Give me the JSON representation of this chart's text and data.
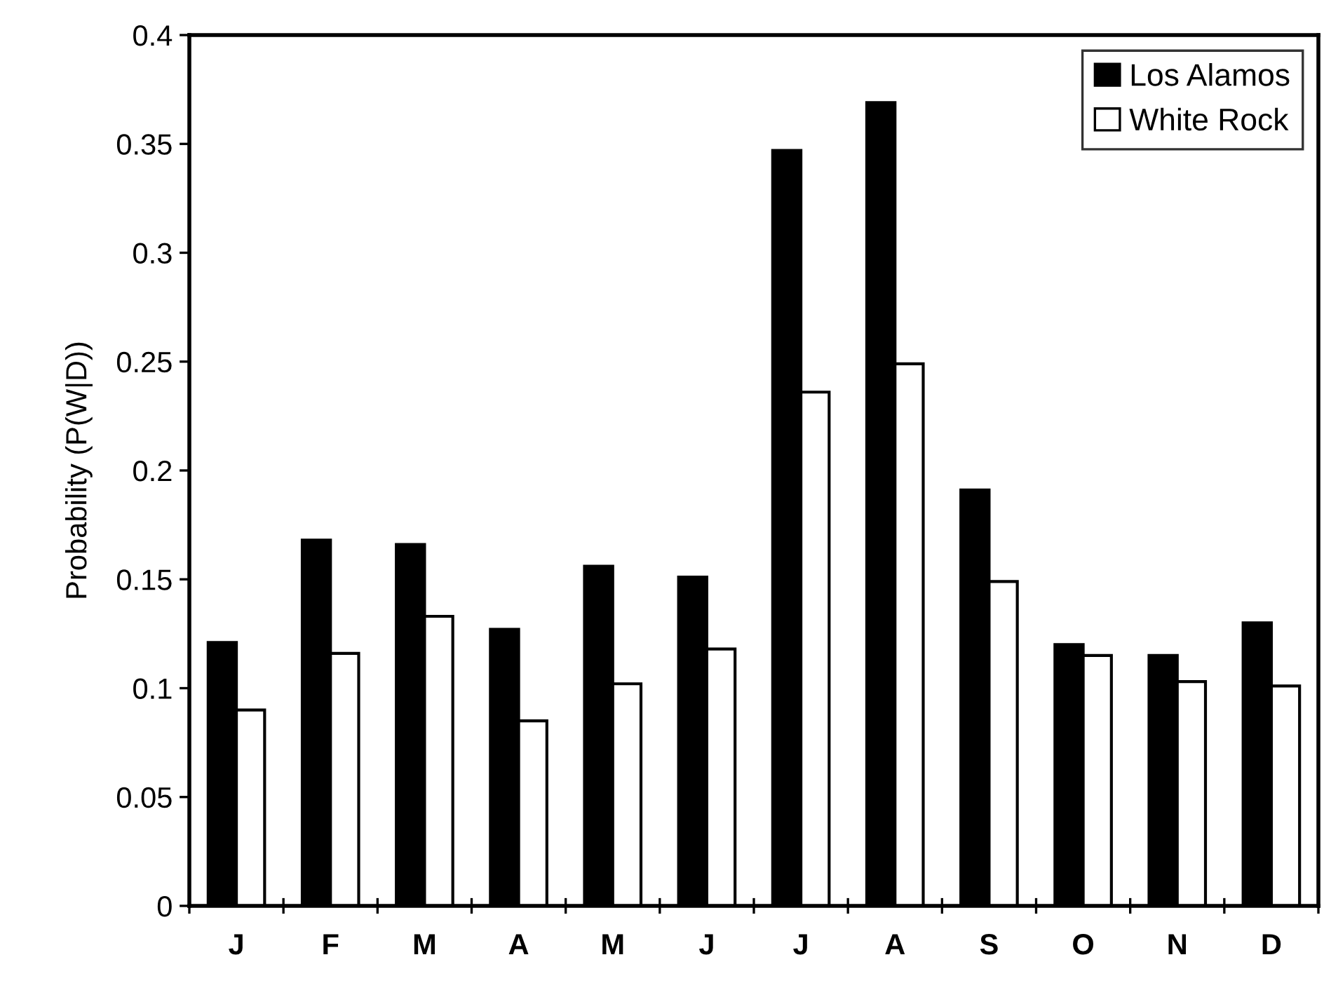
{
  "chart_data": {
    "type": "bar",
    "ylabel": "Probability (P(W|D))",
    "categories": [
      "J",
      "F",
      "M",
      "A",
      "M",
      "J",
      "J",
      "A",
      "S",
      "O",
      "N",
      "D"
    ],
    "series": [
      {
        "name": "Los Alamos",
        "color": "#000000",
        "values": [
          0.121,
          0.168,
          0.166,
          0.127,
          0.156,
          0.151,
          0.347,
          0.369,
          0.191,
          0.12,
          0.115,
          0.13
        ]
      },
      {
        "name": "White Rock",
        "color": "#ffffff",
        "values": [
          0.09,
          0.116,
          0.133,
          0.085,
          0.102,
          0.118,
          0.236,
          0.249,
          0.149,
          0.115,
          0.103,
          0.101
        ]
      }
    ],
    "ylim": [
      0,
      0.4
    ],
    "yticks": [
      {
        "value": 0,
        "label": "0"
      },
      0.05,
      {
        "value": 0.1,
        "label": "0.1"
      },
      0.15,
      {
        "value": 0.2,
        "label": "0.2"
      },
      0.25,
      {
        "value": 0.3,
        "label": "0.3"
      },
      0.35,
      {
        "value": 0.4,
        "label": "0.4"
      }
    ],
    "grid": false,
    "legend": "top right"
  }
}
